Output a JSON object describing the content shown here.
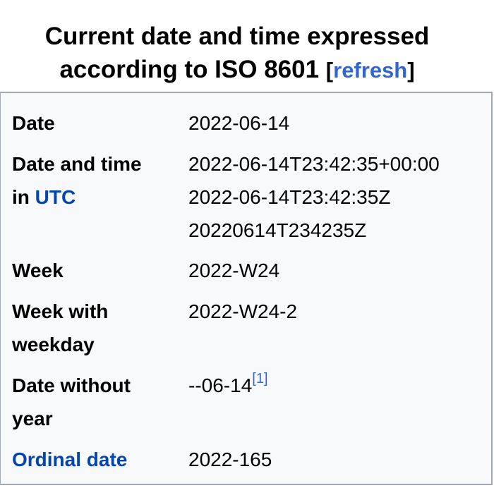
{
  "caption": {
    "line1": "Current date and time expressed",
    "line2": "according to ISO 8601",
    "refresh_open": "[",
    "refresh_label": "refresh",
    "refresh_close": "]"
  },
  "rows": {
    "date": {
      "label": "Date",
      "value": "2022-06-14"
    },
    "datetime": {
      "label_part1": "Date and time",
      "label_part2": "in ",
      "label_link": "UTC",
      "value1": "2022-06-14T23:42:35+00:00",
      "value2": "2022-06-14T23:42:35Z",
      "value3": "20220614T234235Z"
    },
    "week": {
      "label": "Week",
      "value": "2022-W24"
    },
    "week_weekday": {
      "label_line1": "Week with",
      "label_line2": "weekday",
      "value": "2022-W24-2"
    },
    "date_no_year": {
      "label_line1": "Date without",
      "label_line2": "year",
      "value": "--06-14",
      "ref": "[1]"
    },
    "ordinal": {
      "label": "Ordinal date",
      "value": "2022-165"
    }
  },
  "colors": {
    "link": "#0645ad",
    "refresh_link": "#3366cc",
    "infobox_bg": "#f8f9fa",
    "border": "#a2a9b1"
  }
}
